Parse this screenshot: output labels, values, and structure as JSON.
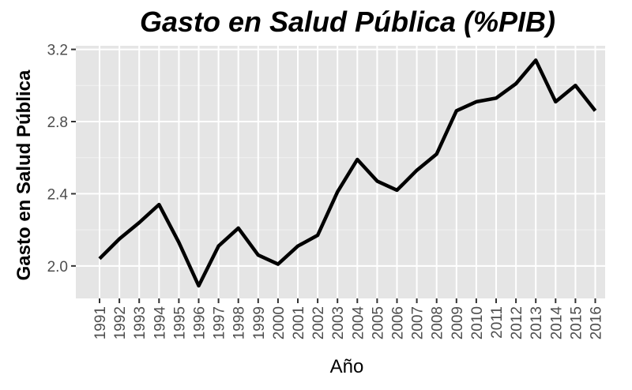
{
  "chart_data": {
    "type": "line",
    "title": "Gasto en Salud Pública (%PIB)",
    "xlabel": "Año",
    "ylabel": "Gasto en Salud Pública",
    "categories": [
      "1991",
      "1992",
      "1993",
      "1994",
      "1995",
      "1996",
      "1997",
      "1998",
      "1999",
      "2000",
      "2001",
      "2002",
      "2003",
      "2004",
      "2005",
      "2006",
      "2007",
      "2008",
      "2009",
      "2010",
      "2011",
      "2012",
      "2013",
      "2014",
      "2015",
      "2016"
    ],
    "series": [
      {
        "values": [
          2.04,
          2.15,
          2.24,
          2.34,
          2.13,
          1.89,
          2.11,
          2.21,
          2.06,
          2.01,
          2.11,
          2.17,
          2.41,
          2.59,
          2.47,
          2.42,
          2.53,
          2.62,
          2.86,
          2.91,
          2.93,
          3.01,
          3.14,
          2.91,
          3.0,
          2.86
        ]
      }
    ],
    "yticks": [
      "2.0",
      "2.4",
      "2.8",
      "3.2"
    ],
    "ylim": [
      1.82,
      3.22
    ],
    "grid": true,
    "background": "#e5e5e5",
    "line_color": "#000000"
  }
}
